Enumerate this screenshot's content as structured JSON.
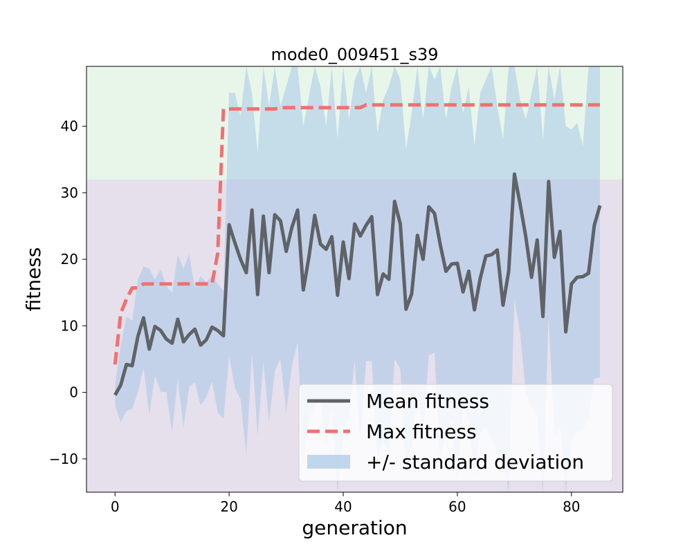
{
  "chart_data": {
    "type": "line",
    "title": "mode0_009451_s39",
    "xlabel": "generation",
    "ylabel": "fitness",
    "xlim": [
      -5,
      89
    ],
    "ylim": [
      -15,
      49
    ],
    "xticks": [
      0,
      20,
      40,
      60,
      80
    ],
    "yticks": [
      -10,
      0,
      10,
      20,
      30,
      40
    ],
    "grid": false,
    "legend_position": "lower right",
    "background_regions": [
      {
        "from": -15,
        "to": 32,
        "color": "#e6e0ec"
      },
      {
        "from": 32,
        "to": 49,
        "color": "#e8f6ea"
      }
    ],
    "series": [
      {
        "name": "Mean fitness",
        "color": "#5f6368",
        "style": "solid",
        "x": [
          0,
          1,
          2,
          3,
          4,
          5,
          6,
          7,
          8,
          9,
          10,
          11,
          12,
          13,
          14,
          15,
          16,
          17,
          18,
          19,
          20,
          21,
          22,
          23,
          24,
          25,
          26,
          27,
          28,
          29,
          30,
          31,
          32,
          33,
          34,
          35,
          36,
          37,
          38,
          39,
          40,
          41,
          42,
          43,
          44,
          45,
          46,
          47,
          48,
          49,
          50,
          51,
          52,
          53,
          54,
          55,
          56,
          57,
          58,
          59,
          60,
          61,
          62,
          63,
          64,
          65,
          66,
          67,
          68,
          69,
          70,
          71,
          72,
          73,
          74,
          75,
          76,
          77,
          78,
          79,
          80,
          81,
          82,
          83,
          84,
          85
        ],
        "values": [
          -0.4,
          1.1,
          4.2,
          4.0,
          8.4,
          11.2,
          6.5,
          9.9,
          9.3,
          8.0,
          7.4,
          11.0,
          7.6,
          8.7,
          9.5,
          7.1,
          7.9,
          9.8,
          9.3,
          8.5,
          25.2,
          22.5,
          20.0,
          18.0,
          27.4,
          14.7,
          26.5,
          18.0,
          26.7,
          25.8,
          21.2,
          24.8,
          27.4,
          15.4,
          20.4,
          26.6,
          22.3,
          21.5,
          23.4,
          14.6,
          22.6,
          17.1,
          25.3,
          23.5,
          25.1,
          26.4,
          14.7,
          17.8,
          17.0,
          28.7,
          25.3,
          12.5,
          14.8,
          23.6,
          20.0,
          27.9,
          26.9,
          22.2,
          18.2,
          19.3,
          19.4,
          15.1,
          18.2,
          12.4,
          17.1,
          20.5,
          20.7,
          21.4,
          13.1,
          18.2,
          32.8,
          28.3,
          23.4,
          17.3,
          22.9,
          11.4,
          31.7,
          20.3,
          24.2,
          9.1,
          16.3,
          17.3,
          17.4,
          17.9,
          25.1,
          28.1
        ]
      },
      {
        "name": "Max fitness",
        "color": "#f07070",
        "style": "dashed",
        "x": [
          0,
          1,
          2,
          3,
          4,
          5,
          6,
          7,
          8,
          9,
          10,
          11,
          12,
          13,
          14,
          15,
          16,
          17,
          18,
          19,
          20,
          21,
          22,
          23,
          24,
          25,
          26,
          27,
          28,
          29,
          30,
          31,
          32,
          33,
          34,
          35,
          36,
          37,
          38,
          39,
          40,
          41,
          42,
          43,
          44,
          45,
          46,
          47,
          48,
          49,
          50,
          51,
          52,
          53,
          54,
          55,
          56,
          57,
          58,
          59,
          60,
          61,
          62,
          63,
          64,
          65,
          66,
          67,
          68,
          69,
          70,
          71,
          72,
          73,
          74,
          75,
          76,
          77,
          78,
          79,
          80,
          81,
          82,
          83,
          84,
          85
        ],
        "values": [
          4.2,
          11.9,
          14.0,
          15.7,
          15.7,
          16.3,
          16.3,
          16.3,
          16.3,
          16.3,
          16.3,
          16.3,
          16.3,
          16.3,
          16.3,
          16.3,
          16.3,
          16.3,
          20.9,
          42.6,
          42.6,
          42.6,
          42.6,
          42.6,
          42.6,
          42.6,
          42.6,
          42.6,
          42.6,
          42.8,
          42.8,
          42.8,
          42.8,
          42.8,
          42.8,
          42.8,
          42.8,
          42.8,
          42.8,
          42.8,
          42.8,
          42.8,
          42.8,
          42.8,
          43.2,
          43.2,
          43.2,
          43.2,
          43.2,
          43.2,
          43.2,
          43.2,
          43.2,
          43.2,
          43.2,
          43.2,
          43.2,
          43.2,
          43.2,
          43.2,
          43.2,
          43.2,
          43.2,
          43.2,
          43.2,
          43.2,
          43.2,
          43.2,
          43.2,
          43.2,
          43.2,
          43.2,
          43.2,
          43.2,
          43.2,
          43.2,
          43.2,
          43.2,
          43.2,
          43.2,
          43.2,
          43.2,
          43.2,
          43.2,
          43.2,
          43.2
        ]
      },
      {
        "name": "+/- standard deviation",
        "type": "band",
        "color": "#a7c7e7",
        "opacity": 0.55,
        "x": [
          0,
          1,
          2,
          3,
          4,
          5,
          6,
          7,
          8,
          9,
          10,
          11,
          12,
          13,
          14,
          15,
          16,
          17,
          18,
          19,
          20,
          21,
          22,
          23,
          24,
          25,
          26,
          27,
          28,
          29,
          30,
          31,
          32,
          33,
          34,
          35,
          36,
          37,
          38,
          39,
          40,
          41,
          42,
          43,
          44,
          45,
          46,
          47,
          48,
          49,
          50,
          51,
          52,
          53,
          54,
          55,
          56,
          57,
          58,
          59,
          60,
          61,
          62,
          63,
          64,
          65,
          66,
          67,
          68,
          69,
          70,
          71,
          72,
          73,
          74,
          75,
          76,
          77,
          78,
          79,
          80,
          81,
          82,
          83,
          84,
          85
        ],
        "upper": [
          1.2,
          7.0,
          11.4,
          10.8,
          17.0,
          18.9,
          18.6,
          17.0,
          18.5,
          16.0,
          15.0,
          20.6,
          18.6,
          20.8,
          15.7,
          17.5,
          16.5,
          17.6,
          16.3,
          15.3,
          45.0,
          45.0,
          41.5,
          49.0,
          45.0,
          36.0,
          49.0,
          43.0,
          49.0,
          43.0,
          46.0,
          49.0,
          49.0,
          40.0,
          44.5,
          49.0,
          46.0,
          40.0,
          49.0,
          38.0,
          49.0,
          41.0,
          47.0,
          49.0,
          45.0,
          49.0,
          39.0,
          44.0,
          46.0,
          49.0,
          47.0,
          36.5,
          42.0,
          49.0,
          41.0,
          49.0,
          47.0,
          49.0,
          41.0,
          46.0,
          49.0,
          42.0,
          46.0,
          37.0,
          45.0,
          47.0,
          49.0,
          43.0,
          38.0,
          49.0,
          49.0,
          44.0,
          41.0,
          45.0,
          49.0,
          38.0,
          49.0,
          44.0,
          49.0,
          40.0,
          39.5,
          40.5,
          37.0,
          49.0,
          49.0,
          49.0
        ],
        "lower": [
          -2.0,
          -4.5,
          -2.8,
          -2.5,
          0.0,
          3.7,
          -3.3,
          2.5,
          0.1,
          0.0,
          -6.0,
          2.0,
          -5.3,
          0.8,
          1.5,
          -2.0,
          -0.7,
          1.6,
          -3.0,
          -4.0,
          5.5,
          0.7,
          -1.0,
          -9.5,
          6.0,
          -6.5,
          4.5,
          -4.5,
          3.2,
          5.0,
          -3.0,
          4.0,
          7.5,
          -10.5,
          -4.0,
          -2.0,
          -1.0,
          -8.0,
          -2.0,
          -15.0,
          -6.0,
          -3.5,
          4.7,
          -7.5,
          4.7,
          4.7,
          -10.0,
          -7.0,
          -9.5,
          5.0,
          3.5,
          -12.0,
          -9.0,
          1.0,
          -6.0,
          5.5,
          6.0,
          -10.0,
          -6.0,
          -4.0,
          -13.0,
          -2.0,
          -4.0,
          -12.5,
          -6.0,
          -5.0,
          -7.0,
          -9.0,
          -9.5,
          -15.0,
          14.0,
          9.0,
          0.0,
          -2.0,
          -3.5,
          -15.0,
          11.5,
          -6.5,
          -5.0,
          -15.0,
          -7.0,
          -6.0,
          -5.5,
          -4.0,
          2.0,
          2.3
        ]
      }
    ]
  }
}
